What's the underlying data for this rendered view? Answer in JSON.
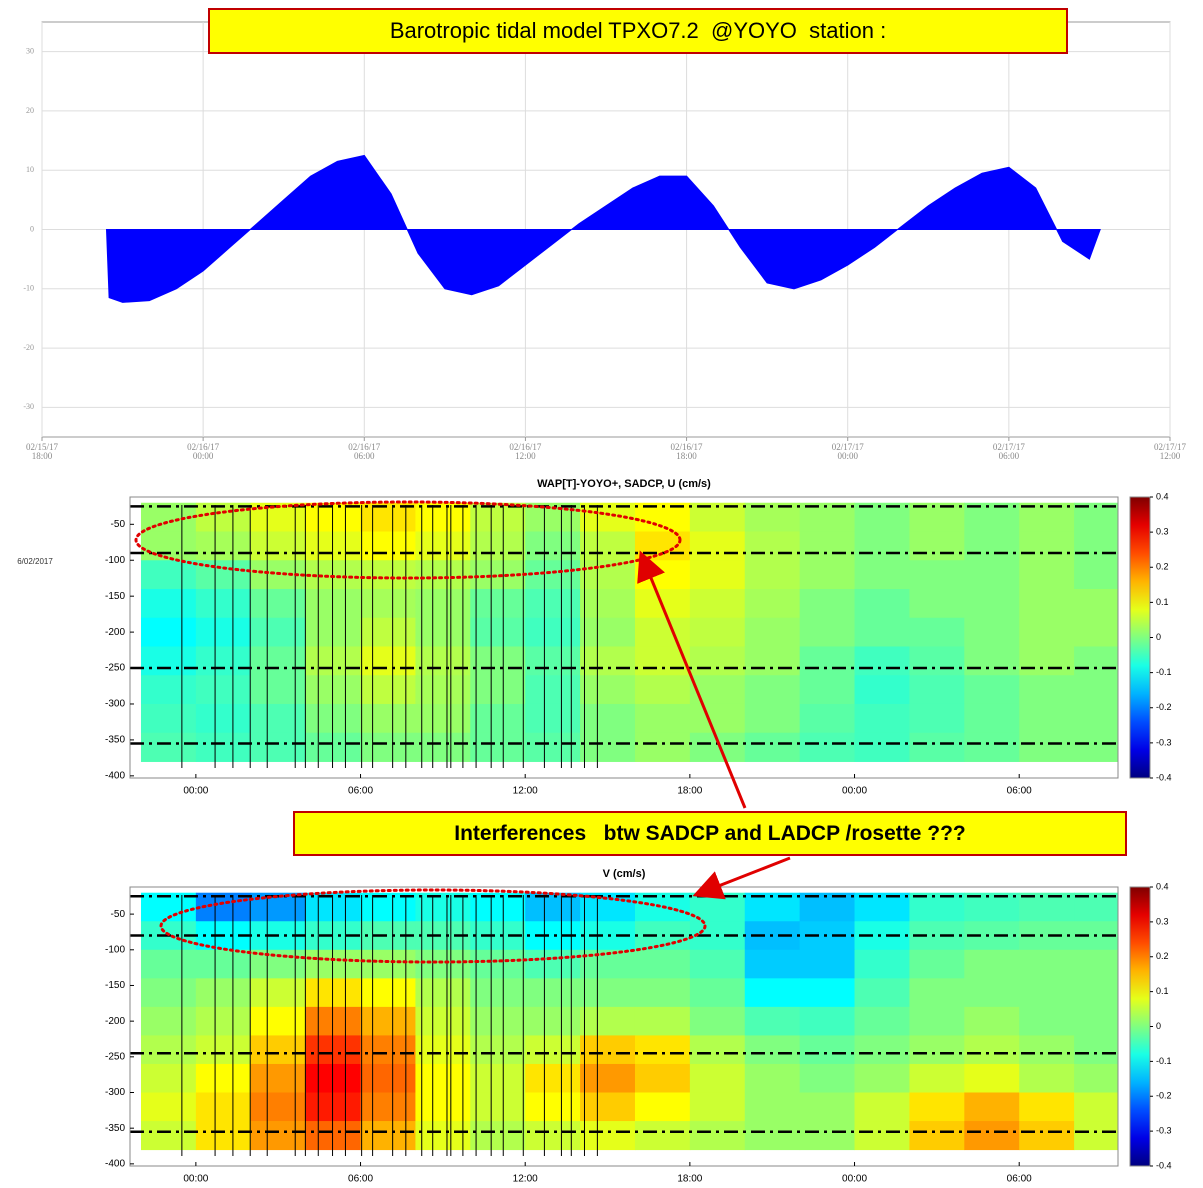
{
  "chart_data": [
    {
      "type": "stick",
      "title": "Barotropic tidal model TPXO7.2  @YOYO  station :",
      "x": [
        2.4,
        2.5,
        3,
        4,
        5,
        6,
        7,
        8,
        9,
        10,
        11,
        12,
        13,
        14,
        15,
        16,
        17,
        18,
        19,
        20,
        21,
        22,
        23,
        24,
        25,
        26,
        27,
        28,
        29,
        30,
        31,
        32,
        33,
        34,
        35,
        36,
        37,
        38,
        39,
        39.4
      ],
      "values": [
        0,
        -11.5,
        -12.3,
        -12,
        -10,
        -7,
        -3,
        1,
        5,
        9,
        11.5,
        12.5,
        6,
        -4,
        -10,
        -11,
        -9.5,
        -6,
        -2.5,
        1,
        4,
        7,
        9,
        9,
        4,
        -3,
        -9,
        -10,
        -8.5,
        -6,
        -3,
        0.5,
        4,
        7,
        9.5,
        10.5,
        7,
        -2,
        -5,
        0
      ],
      "color": "#0000ff",
      "xlim": [
        0,
        42
      ],
      "ylim": [
        -35,
        35
      ],
      "xticks": [
        {
          "value": 0,
          "label": "02/15/17\n18:00"
        },
        {
          "value": 6,
          "label": "02/16/17\n00:00"
        },
        {
          "value": 12,
          "label": "02/16/17\n06:00"
        },
        {
          "value": 18,
          "label": "02/16/17\n12:00"
        },
        {
          "value": 24,
          "label": "02/16/17\n18:00"
        },
        {
          "value": 30,
          "label": "02/17/17\n00:00"
        },
        {
          "value": 36,
          "label": "02/17/17\n06:00"
        },
        {
          "value": 42,
          "label": "02/17/17\n12:00"
        }
      ],
      "yticks": [
        -30,
        -20,
        -10,
        0,
        10,
        20,
        30
      ],
      "grid": true
    },
    {
      "type": "heatmap",
      "title": "WAP[T]-YOYO+, SADCP, U (cm/s)",
      "colormap": "jet",
      "x": [
        -1,
        1,
        3,
        5,
        7,
        9,
        11,
        13,
        15,
        17,
        19,
        21,
        23,
        25,
        27,
        29,
        31,
        33
      ],
      "y": [
        -40,
        -80,
        -120,
        -160,
        -200,
        -240,
        -280,
        -320,
        -360
      ],
      "z": [
        [
          0.02,
          0.05,
          0.08,
          0.1,
          0.12,
          0.1,
          0.05,
          0.02,
          0.08,
          0.1,
          0.06,
          0.03,
          0.02,
          0.0,
          0.02,
          0.0,
          0.02,
          0.0
        ],
        [
          0.02,
          0.03,
          0.06,
          0.08,
          0.1,
          0.08,
          0.04,
          0.0,
          0.05,
          0.12,
          0.08,
          0.04,
          0.02,
          0.0,
          0.02,
          0.0,
          0.02,
          0.0
        ],
        [
          -0.05,
          -0.03,
          0.02,
          0.04,
          0.05,
          0.04,
          0.02,
          -0.02,
          0.04,
          0.1,
          0.08,
          0.04,
          0.02,
          0.0,
          0.0,
          0.0,
          0.02,
          0.0
        ],
        [
          -0.08,
          -0.06,
          -0.02,
          0.02,
          0.03,
          0.02,
          -0.02,
          -0.04,
          0.03,
          0.08,
          0.06,
          0.03,
          0.0,
          -0.02,
          0.0,
          0.0,
          0.02,
          0.02
        ],
        [
          -0.1,
          -0.08,
          -0.04,
          0.02,
          0.05,
          0.02,
          -0.03,
          -0.05,
          0.02,
          0.06,
          0.05,
          0.02,
          0.0,
          -0.02,
          -0.02,
          0.0,
          0.02,
          0.02
        ],
        [
          -0.08,
          -0.06,
          -0.02,
          0.04,
          0.08,
          0.04,
          0.0,
          -0.03,
          0.04,
          0.06,
          0.04,
          0.02,
          -0.02,
          -0.05,
          -0.03,
          0.0,
          0.02,
          0.0
        ],
        [
          -0.06,
          -0.05,
          -0.02,
          0.02,
          0.05,
          0.03,
          0.0,
          -0.04,
          0.02,
          0.04,
          0.02,
          0.0,
          -0.02,
          -0.06,
          -0.04,
          -0.02,
          0.0,
          0.0
        ],
        [
          -0.05,
          -0.06,
          -0.04,
          0.0,
          0.02,
          0.02,
          -0.02,
          -0.04,
          0.0,
          0.02,
          0.02,
          0.0,
          -0.03,
          -0.05,
          -0.04,
          -0.02,
          0.0,
          0.0
        ],
        [
          -0.04,
          -0.05,
          -0.04,
          -0.02,
          0.0,
          0.0,
          -0.02,
          -0.03,
          0.0,
          0.02,
          0.0,
          -0.02,
          -0.04,
          -0.05,
          -0.03,
          -0.02,
          0.0,
          0.0
        ]
      ],
      "xlim": [
        -2.4,
        33.6
      ],
      "ylim": [
        -403,
        -12
      ],
      "xticks": [
        {
          "value": 0,
          "label": "00:00"
        },
        {
          "value": 6,
          "label": "06:00"
        },
        {
          "value": 12,
          "label": "12:00"
        },
        {
          "value": 18,
          "label": "18:00"
        },
        {
          "value": 24,
          "label": "00:00"
        },
        {
          "value": 30,
          "label": "06:00"
        }
      ],
      "yticks": [
        -400,
        -350,
        -300,
        -250,
        -200,
        -150,
        -100,
        -50
      ],
      "clim": [
        -0.4,
        0.4
      ],
      "cticks": [
        -0.4,
        -0.3,
        -0.2,
        -0.1,
        0,
        0.1,
        0.2,
        0.3,
        0.4
      ],
      "vlines": [
        -0.51,
        0.7,
        1.35,
        1.98,
        2.6,
        3.62,
        3.99,
        4.46,
        4.98,
        5.45,
        6.04,
        6.44,
        7.17,
        7.65,
        8.23,
        8.63,
        9.15,
        9.29,
        9.73,
        10.21,
        10.76,
        11.2,
        11.93,
        12.7,
        13.32,
        13.68,
        14.16,
        14.63
      ],
      "hlines": [
        -25,
        -90,
        -250,
        -355
      ]
    },
    {
      "type": "heatmap",
      "title": "V (cm/s)",
      "colormap": "jet",
      "x": [
        -1,
        1,
        3,
        5,
        7,
        9,
        11,
        13,
        15,
        17,
        19,
        21,
        23,
        25,
        27,
        29,
        31,
        33
      ],
      "y": [
        -40,
        -80,
        -120,
        -160,
        -200,
        -240,
        -280,
        -320,
        -360
      ],
      "z": [
        [
          -0.1,
          -0.2,
          -0.18,
          -0.12,
          -0.1,
          -0.08,
          -0.1,
          -0.15,
          -0.12,
          -0.08,
          -0.06,
          -0.12,
          -0.15,
          -0.12,
          -0.06,
          -0.05,
          -0.04,
          -0.04
        ],
        [
          -0.06,
          -0.1,
          -0.08,
          -0.06,
          -0.04,
          -0.04,
          -0.06,
          -0.1,
          -0.08,
          -0.05,
          -0.06,
          -0.15,
          -0.14,
          -0.08,
          -0.04,
          -0.03,
          -0.02,
          -0.02
        ],
        [
          -0.02,
          -0.02,
          0.0,
          0.02,
          0.02,
          0.0,
          -0.02,
          -0.04,
          -0.02,
          -0.02,
          -0.04,
          -0.14,
          -0.14,
          -0.06,
          -0.02,
          0.0,
          0.0,
          0.0
        ],
        [
          0.0,
          0.02,
          0.06,
          0.12,
          0.1,
          0.04,
          0.0,
          0.0,
          0.0,
          0.0,
          -0.02,
          -0.1,
          -0.1,
          -0.04,
          0.0,
          0.0,
          0.0,
          0.0
        ],
        [
          0.02,
          0.04,
          0.1,
          0.2,
          0.16,
          0.06,
          0.02,
          0.02,
          0.04,
          0.04,
          0.0,
          -0.04,
          -0.05,
          -0.02,
          0.0,
          0.02,
          0.0,
          0.0
        ],
        [
          0.04,
          0.06,
          0.14,
          0.26,
          0.2,
          0.08,
          0.04,
          0.06,
          0.14,
          0.12,
          0.04,
          0.0,
          -0.02,
          0.0,
          0.02,
          0.04,
          0.02,
          0.0
        ],
        [
          0.06,
          0.1,
          0.18,
          0.3,
          0.22,
          0.1,
          0.06,
          0.12,
          0.18,
          0.14,
          0.06,
          0.02,
          0.0,
          0.02,
          0.06,
          0.08,
          0.04,
          0.02
        ],
        [
          0.08,
          0.12,
          0.2,
          0.28,
          0.2,
          0.1,
          0.06,
          0.1,
          0.14,
          0.1,
          0.06,
          0.02,
          0.02,
          0.06,
          0.12,
          0.16,
          0.12,
          0.06
        ],
        [
          0.06,
          0.12,
          0.18,
          0.22,
          0.16,
          0.08,
          0.04,
          0.06,
          0.08,
          0.06,
          0.04,
          0.02,
          0.02,
          0.06,
          0.14,
          0.18,
          0.14,
          0.06
        ]
      ],
      "xlim": [
        -2.4,
        33.6
      ],
      "ylim": [
        -403,
        -12
      ],
      "xticks": [
        {
          "value": 0,
          "label": "00:00"
        },
        {
          "value": 6,
          "label": "06:00"
        },
        {
          "value": 12,
          "label": "12:00"
        },
        {
          "value": 18,
          "label": "18:00"
        },
        {
          "value": 24,
          "label": "00:00"
        },
        {
          "value": 30,
          "label": "06:00"
        }
      ],
      "yticks": [
        -400,
        -350,
        -300,
        -250,
        -200,
        -150,
        -100,
        -50
      ],
      "clim": [
        -0.4,
        0.4
      ],
      "cticks": [
        -0.4,
        -0.3,
        -0.2,
        -0.1,
        0,
        0.1,
        0.2,
        0.3,
        0.4
      ],
      "vlines": [
        -0.51,
        0.7,
        1.35,
        1.98,
        2.6,
        3.62,
        3.99,
        4.46,
        4.98,
        5.45,
        6.04,
        6.44,
        7.17,
        7.65,
        8.23,
        8.63,
        9.15,
        9.29,
        9.73,
        10.21,
        10.76,
        11.2,
        11.93,
        12.7,
        13.32,
        13.68,
        14.16,
        14.63
      ],
      "hlines": [
        -25,
        -80,
        -245,
        -355
      ]
    }
  ],
  "annotations": {
    "date_label": "6/02/2017",
    "callout": "Interferences   btw SADCP and LADCP /rosette ???"
  }
}
